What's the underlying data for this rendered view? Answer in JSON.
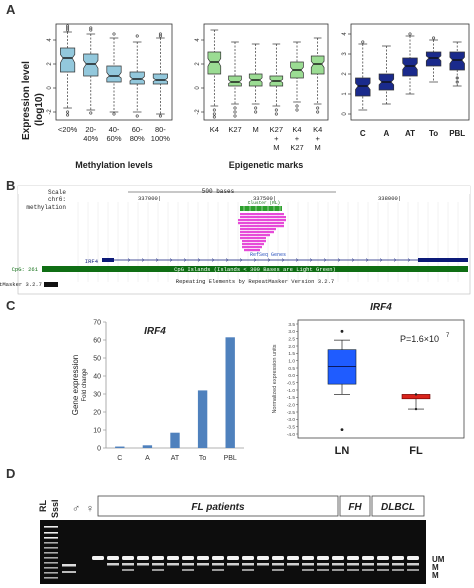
{
  "panels": {
    "A": "A",
    "B": "B",
    "C": "C",
    "D": "D"
  },
  "colors": {
    "light_blue": "#93c8dc",
    "light_green": "#9bdc93",
    "dark_blue": "#1a2a8c",
    "bar_blue": "#4f81bd",
    "box_blue": "#1f5cff",
    "box_red": "#d9241c",
    "ucsc_green": "#0f6e14",
    "ucsc_navy": "#0c1a78",
    "magenta": "#e64bd8"
  },
  "panelA": {
    "ylabel_line1": "Expression level",
    "ylabel_line2": "(log10)",
    "chart1": {
      "xlabel": "Methylation levels",
      "ticks": [
        "4",
        "2",
        "0",
        "-2"
      ],
      "categories": [
        "<20%",
        "20-\n40%",
        "40-\n60%",
        "60-\n80%",
        "80-\n100%"
      ]
    },
    "chart2": {
      "xlabel": "Epigenetic marks",
      "ticks": [
        "4",
        "2",
        "0",
        "-2"
      ],
      "categories": [
        "K4",
        "K27",
        "M",
        "K27\n+\nM",
        "K4\n+\nK27",
        "K4\n+\nM"
      ]
    },
    "chart3": {
      "ticks": [
        "4",
        "3",
        "2",
        "1",
        "0"
      ],
      "categories": [
        "C",
        "A",
        "AT",
        "To",
        "PBL"
      ]
    }
  },
  "panelB": {
    "scale_label": "Scale",
    "chr_label": "chr6:",
    "scale_bar": "500 bases",
    "positions": [
      "337000|",
      "337500|",
      "338000|"
    ],
    "methylation_label": "methylation",
    "cluster_label": "Cluster (RL)",
    "refseq_label": "RefSeq Genes",
    "irf4_label": "IRF4",
    "cpg_label": "CpG: 261",
    "cpg_track": "CpG Islands (Islands < 300 Bases are Light Green)",
    "rmsk_label": "RepeatMasker 3.2.7",
    "rmsk_track": "Repeating Elements by RepeatMasker Version 3.2.7"
  },
  "panelC": {
    "title": "IRF4",
    "ylabel_line1": "Gene expression",
    "ylabel_line2": "Fold change",
    "chart_data": {
      "type": "bar",
      "categories": [
        "C",
        "A",
        "AT",
        "To",
        "PBL"
      ],
      "values": [
        0.8,
        1.5,
        8.5,
        32,
        61.5
      ],
      "ylim": [
        0,
        70
      ],
      "ticks": [
        0,
        10,
        20,
        30,
        40,
        50,
        60,
        70
      ]
    },
    "box_title": "IRF4",
    "pvalue": "P=1.6×10",
    "pvalue_exp": "7",
    "box_ylabel": "Normalized expression units",
    "box_ticks": [
      "3.5",
      "3.0",
      "2.5",
      "2.0",
      "1.5",
      "1.0",
      "0.5",
      "0.0",
      "-0.5",
      "-1.0",
      "-1.5",
      "-2.0",
      "-2.5",
      "-3.0",
      "-3.5",
      "-4.0"
    ],
    "box_categories": [
      "LN",
      "FL"
    ]
  },
  "panelD": {
    "lane_rl": "RL",
    "lane_sssi": "SssI",
    "male_symbol": "♂",
    "female_symbol": "♀",
    "group_fl": "FL patients",
    "group_fh": "FH",
    "group_dlbcl": "DLBCL",
    "band_um": "UM",
    "band_m1": "M",
    "band_m2": "M"
  }
}
